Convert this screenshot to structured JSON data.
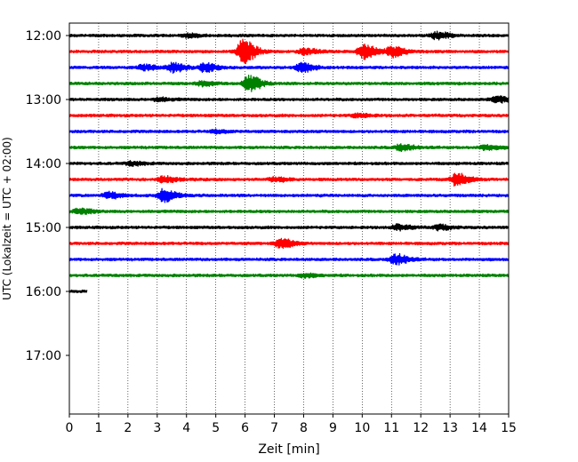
{
  "chart_data": {
    "type": "line",
    "title": "",
    "xlabel": "Zeit  [min]",
    "ylabel": "UTC (Lokalzeit = UTC + 02:00)",
    "xlim": [
      0,
      15
    ],
    "x_ticks": [
      0,
      1,
      2,
      3,
      4,
      5,
      6,
      7,
      8,
      9,
      10,
      11,
      12,
      13,
      14,
      15
    ],
    "y_ticks": [
      "12:00",
      "13:00",
      "14:00",
      "15:00",
      "16:00",
      "17:00"
    ],
    "grid": "vertical dotted",
    "colors": [
      "#000000",
      "#ff0000",
      "#0000ff",
      "#008000"
    ],
    "traces": [
      {
        "start": "12:00",
        "color": "#000000",
        "end_min": 15,
        "events": [
          {
            "t": 12.5,
            "amp": 1.2
          },
          {
            "t": 4.0,
            "amp": 0.6
          }
        ]
      },
      {
        "start": "12:15",
        "color": "#ff0000",
        "end_min": 15,
        "events": [
          {
            "t": 5.9,
            "amp": 4.0
          },
          {
            "t": 10.0,
            "amp": 2.5
          },
          {
            "t": 11.0,
            "amp": 1.8
          },
          {
            "t": 8.0,
            "amp": 1.0
          }
        ]
      },
      {
        "start": "12:30",
        "color": "#0000ff",
        "end_min": 15,
        "events": [
          {
            "t": 3.5,
            "amp": 1.5
          },
          {
            "t": 4.6,
            "amp": 1.4
          },
          {
            "t": 7.9,
            "amp": 1.6
          },
          {
            "t": 2.5,
            "amp": 0.9
          }
        ]
      },
      {
        "start": "12:45",
        "color": "#008000",
        "end_min": 15,
        "events": [
          {
            "t": 6.1,
            "amp": 2.6
          },
          {
            "t": 4.5,
            "amp": 0.8
          }
        ]
      },
      {
        "start": "13:00",
        "color": "#000000",
        "end_min": 15,
        "events": [
          {
            "t": 14.6,
            "amp": 1.0
          },
          {
            "t": 3.0,
            "amp": 0.5
          }
        ]
      },
      {
        "start": "13:15",
        "color": "#ff0000",
        "end_min": 15,
        "events": [
          {
            "t": 9.8,
            "amp": 0.6
          }
        ]
      },
      {
        "start": "13:30",
        "color": "#0000ff",
        "end_min": 15,
        "events": [
          {
            "t": 5.0,
            "amp": 0.5
          }
        ]
      },
      {
        "start": "13:45",
        "color": "#008000",
        "end_min": 15,
        "events": [
          {
            "t": 11.3,
            "amp": 1.1
          },
          {
            "t": 14.2,
            "amp": 0.8
          }
        ]
      },
      {
        "start": "14:00",
        "color": "#000000",
        "end_min": 15,
        "events": [
          {
            "t": 2.1,
            "amp": 0.6
          }
        ]
      },
      {
        "start": "14:15",
        "color": "#ff0000",
        "end_min": 15,
        "events": [
          {
            "t": 13.2,
            "amp": 2.0
          },
          {
            "t": 3.2,
            "amp": 1.0
          },
          {
            "t": 7.0,
            "amp": 0.7
          }
        ]
      },
      {
        "start": "14:30",
        "color": "#0000ff",
        "end_min": 15,
        "events": [
          {
            "t": 3.2,
            "amp": 2.2
          },
          {
            "t": 1.3,
            "amp": 1.0
          }
        ]
      },
      {
        "start": "14:45",
        "color": "#008000",
        "end_min": 15,
        "events": [
          {
            "t": 0.3,
            "amp": 0.9
          }
        ]
      },
      {
        "start": "15:00",
        "color": "#000000",
        "end_min": 15,
        "events": [
          {
            "t": 11.2,
            "amp": 0.9
          },
          {
            "t": 12.6,
            "amp": 0.8
          }
        ]
      },
      {
        "start": "15:15",
        "color": "#ff0000",
        "end_min": 15,
        "events": [
          {
            "t": 7.2,
            "amp": 1.6
          }
        ]
      },
      {
        "start": "15:30",
        "color": "#0000ff",
        "end_min": 15,
        "events": [
          {
            "t": 11.1,
            "amp": 1.8
          }
        ]
      },
      {
        "start": "15:45",
        "color": "#008000",
        "end_min": 15,
        "events": [
          {
            "t": 8.0,
            "amp": 0.6
          }
        ]
      },
      {
        "start": "16:00",
        "color": "#000000",
        "end_min": 0.6,
        "events": []
      }
    ]
  }
}
